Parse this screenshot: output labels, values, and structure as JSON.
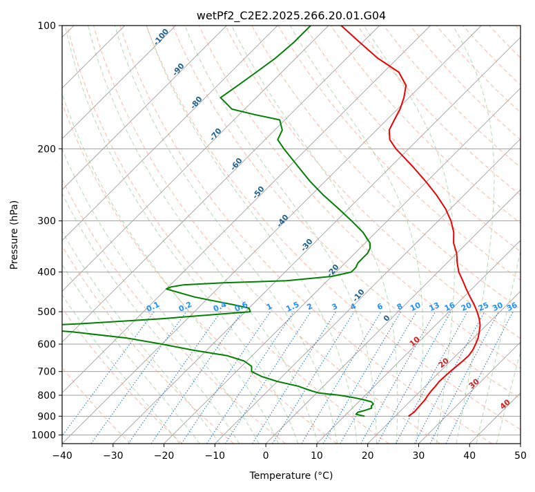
{
  "chart_data": {
    "type": "line",
    "title": "wetPf2_C2E2.2025.266.20.01.G04",
    "xlabel": "Temperature (°C)",
    "ylabel": "Pressure (hPa)",
    "xlim": [
      -40,
      50
    ],
    "ylim": [
      1050,
      100
    ],
    "y_scale": "log",
    "x_ticks": [
      "−40",
      "−30",
      "−20",
      "−10",
      "0",
      "10",
      "20",
      "30",
      "40",
      "50"
    ],
    "y_ticks": [
      {
        "p": 100,
        "label": "100"
      },
      {
        "p": 200,
        "label": "200"
      },
      {
        "p": 300,
        "label": "300"
      },
      {
        "p": 400,
        "label": "400"
      },
      {
        "p": 500,
        "label": "500"
      },
      {
        "p": 600,
        "label": "600"
      },
      {
        "p": 700,
        "label": "700"
      },
      {
        "p": 800,
        "label": "800"
      },
      {
        "p": 900,
        "label": "900"
      },
      {
        "p": 1000,
        "label": "1000"
      }
    ],
    "grid": true,
    "colors": {
      "temperature": "#ee0000",
      "dewpoint": "#008000",
      "isotherms": "#a0a0a0",
      "dry_adiabats": "#ff9f80",
      "moist_adiabats": "#80c080",
      "mixing_ratio": "#1e78d0",
      "dry_label": "#d02020",
      "moist_label": "#1f5f8f",
      "mixing_label": "#1e90ff"
    },
    "series": [
      {
        "name": "",
        "role": "temperature",
        "p": [
          900,
          880,
          860,
          840,
          820,
          800,
          780,
          760,
          740,
          720,
          700,
          680,
          660,
          640,
          620,
          600,
          580,
          560,
          540,
          520,
          500,
          480,
          460,
          440,
          420,
          400,
          380,
          360,
          340,
          320,
          300,
          280,
          260,
          240,
          220,
          200,
          190,
          180,
          170,
          160,
          150,
          140,
          130,
          120,
          110,
          100
        ],
        "t": [
          22.6,
          22.9,
          22.8,
          22.7,
          22.6,
          22.3,
          22.1,
          22.0,
          21.8,
          21.9,
          22.0,
          22.2,
          22.4,
          22.5,
          22.2,
          21.6,
          20.9,
          19.9,
          18.8,
          17.3,
          15.5,
          13.5,
          11.2,
          8.9,
          6.6,
          4.1,
          2.0,
          0.0,
          -2.6,
          -4.7,
          -7.5,
          -11.0,
          -15.3,
          -20.3,
          -26.0,
          -32.5,
          -35.5,
          -37.5,
          -38.5,
          -39.5,
          -41.0,
          -43.0,
          -47.0,
          -54.0,
          -60.5,
          -67.5
        ]
      },
      {
        "name": "",
        "role": "dewpoint",
        "p": [
          900,
          890,
          880,
          870,
          860,
          850,
          840,
          830,
          820,
          810,
          800,
          790,
          780,
          760,
          740,
          720,
          700,
          680,
          660,
          640,
          620,
          600,
          580,
          560,
          545,
          535,
          520,
          500,
          490,
          480,
          470,
          460,
          440,
          435,
          430,
          425,
          420,
          410,
          400,
          390,
          380,
          370,
          360,
          350,
          340,
          320,
          300,
          280,
          260,
          240,
          220,
          200,
          190,
          180,
          170,
          165,
          160,
          150,
          140,
          130,
          120,
          110,
          100
        ],
        "t": [
          14.0,
          11.9,
          11.9,
          13.0,
          13.8,
          13.3,
          13.3,
          12.5,
          10.5,
          8.0,
          5.0,
          0.5,
          -1.5,
          -5.0,
          -10.0,
          -14.0,
          -17.0,
          -18.0,
          -20.5,
          -25.0,
          -33.0,
          -40.0,
          -48.0,
          -60.0,
          -73.5,
          -60.0,
          -45.0,
          -29.0,
          -30.0,
          -34.0,
          -38.5,
          -43.0,
          -50.0,
          -49.5,
          -47.5,
          -40.0,
          -28.0,
          -20.0,
          -17.0,
          -17.0,
          -17.5,
          -17.5,
          -17.5,
          -18.0,
          -19.0,
          -22.5,
          -27.0,
          -32.0,
          -37.5,
          -43.0,
          -48.5,
          -54.5,
          -57.5,
          -58.5,
          -61.0,
          -67.0,
          -72.5,
          -77.0,
          -76.0,
          -75.0,
          -74.0,
          -73.5,
          -73.5
        ]
      }
    ],
    "moist_adiabat_labels": [
      "-100",
      "-90",
      "-80",
      "-70",
      "-60",
      "-50",
      "-40",
      "-30",
      "-20",
      "-10",
      "0"
    ],
    "dry_adiabat_labels": [
      "10",
      "20",
      "30",
      "40"
    ],
    "mixing_ratio_labels": [
      "0.1",
      "0.2",
      "0.4",
      "0.6",
      "1",
      "1.5",
      "2",
      "3",
      "4",
      "6",
      "8",
      "10",
      "13",
      "16",
      "20",
      "25",
      "30",
      "36"
    ]
  }
}
